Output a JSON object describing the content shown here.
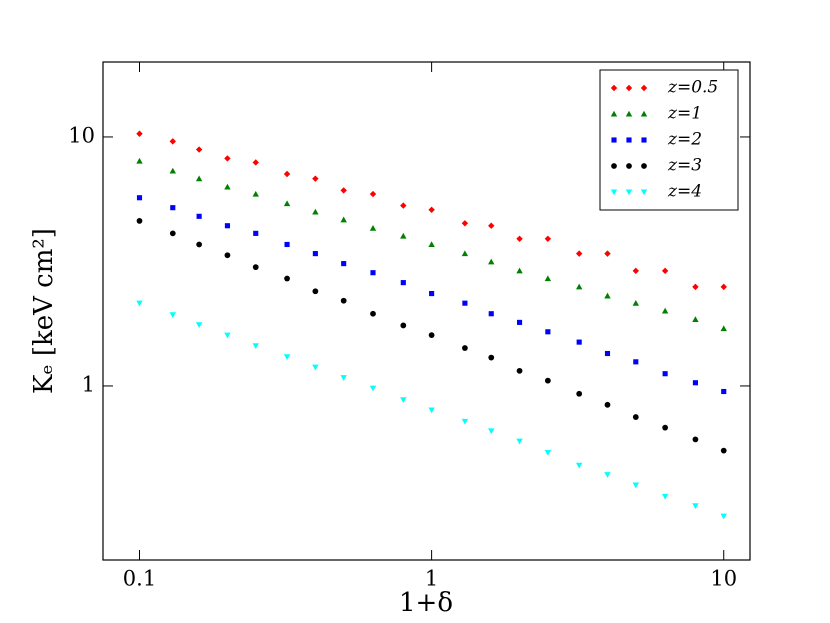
{
  "chart_data": {
    "type": "scatter",
    "xlabel": "1+δ",
    "ylabel": "Kₑ [keV cm²]",
    "xscale": "log",
    "yscale": "log",
    "xlim": [
      0.075,
      12.3
    ],
    "ylim": [
      0.2,
      20
    ],
    "xticks": [
      0.1,
      1,
      10
    ],
    "yticks": [
      1,
      10
    ],
    "legend": "upper right",
    "x": [
      0.1,
      0.13,
      0.16,
      0.2,
      0.25,
      0.32,
      0.4,
      0.5,
      0.63,
      0.8,
      1,
      1.3,
      1.6,
      2,
      2.5,
      3.2,
      4,
      5,
      6.3,
      8,
      10
    ],
    "series": [
      {
        "name": "z=0.5",
        "color": "#ff0000",
        "marker": "diamond",
        "values": [
          10.3,
          9.6,
          8.9,
          8.2,
          7.9,
          7.1,
          6.8,
          6.1,
          5.9,
          5.3,
          5.1,
          4.5,
          4.4,
          3.9,
          3.9,
          3.4,
          3.4,
          2.9,
          2.9,
          2.5,
          2.5
        ]
      },
      {
        "name": "z=1",
        "color": "#008000",
        "marker": "triangle",
        "values": [
          8,
          7.3,
          6.8,
          6.3,
          5.9,
          5.4,
          5.0,
          4.65,
          4.3,
          4.0,
          3.7,
          3.4,
          3.15,
          2.9,
          2.7,
          2.5,
          2.3,
          2.15,
          2.0,
          1.85,
          1.7
        ]
      },
      {
        "name": "z=2",
        "color": "#0000ff",
        "marker": "square",
        "values": [
          5.7,
          5.2,
          4.8,
          4.4,
          4.1,
          3.7,
          3.4,
          3.1,
          2.85,
          2.6,
          2.35,
          2.15,
          1.95,
          1.8,
          1.65,
          1.5,
          1.35,
          1.25,
          1.12,
          1.03,
          0.95
        ]
      },
      {
        "name": "z=3",
        "color": "#000000",
        "marker": "circle",
        "values": [
          4.6,
          4.1,
          3.7,
          3.35,
          3.0,
          2.7,
          2.4,
          2.2,
          1.95,
          1.75,
          1.6,
          1.42,
          1.3,
          1.15,
          1.05,
          0.93,
          0.84,
          0.75,
          0.68,
          0.61,
          0.55
        ]
      },
      {
        "name": "z=4",
        "color": "#00ffff",
        "marker": "tri-down",
        "values": [
          2.15,
          1.93,
          1.76,
          1.6,
          1.45,
          1.31,
          1.19,
          1.08,
          0.98,
          0.88,
          0.8,
          0.72,
          0.66,
          0.6,
          0.54,
          0.48,
          0.44,
          0.4,
          0.36,
          0.33,
          0.3
        ]
      }
    ]
  }
}
